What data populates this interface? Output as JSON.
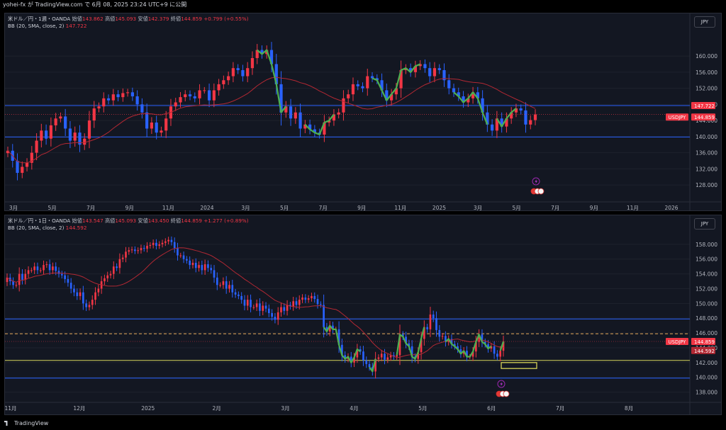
{
  "header": {
    "text": "yohei-fx が TradingView.com で 6月 08, 2025 23:24 UTC+9 に公開"
  },
  "footer": {
    "brand": "TradingView"
  },
  "colors": {
    "up": "#f23645",
    "down": "#2962ff",
    "bb": "#b22833",
    "hline": "#2962ff",
    "green": "#4caf50",
    "yellow": "#e5e25a",
    "bg": "#131722"
  },
  "icons": [
    "lightning-icon",
    "us-flag-icon"
  ],
  "chart_data": [
    {
      "type": "candlestick",
      "legend": {
        "symbol": "米ドル／円・1週・OANDA",
        "open_label": "始値",
        "open": "143.862",
        "high_label": "高値",
        "high": "145.093",
        "low_label": "安値",
        "low": "142.379",
        "close_label": "終値",
        "close": "144.859",
        "change": "+0.799 (+0.55%)",
        "bb": "BB (20, SMA, close, 2)",
        "bb_value": "147.722"
      },
      "currency": "JPY",
      "ylim": [
        124.5,
        166
      ],
      "yticks": [
        "160.000",
        "156.000",
        "152.000",
        "148.000",
        "144.000",
        "140.000",
        "136.000",
        "132.000",
        "128.000"
      ],
      "xticks": [
        "3月",
        "5月",
        "7月",
        "9月",
        "11月",
        "2024",
        "3月",
        "5月",
        "7月",
        "9月",
        "11月",
        "2025",
        "3月",
        "5月",
        "7月",
        "9月",
        "11月",
        "2026"
      ],
      "close_series": [
        136.5,
        134,
        131,
        132.5,
        133.5,
        136,
        139,
        141.5,
        139.5,
        142.8,
        144.5,
        145,
        142,
        139,
        141,
        138,
        139.5,
        144,
        147,
        147.5,
        149.5,
        149,
        150.5,
        149.8,
        150.8,
        151,
        150,
        148,
        146,
        142,
        143.5,
        141,
        141.5,
        144.5,
        147.5,
        148.5,
        149.8,
        150.5,
        150,
        149.5,
        151.5,
        151.5,
        149,
        151.5,
        153,
        154,
        155,
        157,
        156.5,
        155,
        157,
        159.5,
        161.5,
        160.5,
        161.5,
        158,
        153,
        146,
        147.5,
        144.5,
        146,
        142,
        143,
        141.8,
        141,
        140.5,
        143.5,
        144,
        145.5,
        146,
        149.5,
        150.5,
        153,
        152.5,
        152,
        155,
        154.5,
        154,
        151.5,
        149,
        150.5,
        152,
        156.5,
        157,
        156,
        157.5,
        158,
        157,
        155,
        157,
        156.5,
        154,
        152,
        151,
        150,
        148.5,
        149.5,
        151,
        149.5,
        146,
        143,
        141.5,
        144.5,
        142.5,
        144.5,
        146,
        147,
        146.5,
        143,
        144.1,
        145.5
      ],
      "horizontal_lines": [
        {
          "value": 147.722,
          "label": "147.722",
          "color": "#2962ff"
        },
        {
          "value": 139.9,
          "color": "#2962ff"
        }
      ],
      "price_labels": [
        {
          "text": "147.722",
          "value": 147.722,
          "color": "#f23645"
        },
        {
          "text": "USDJPY",
          "value": 144.859,
          "color": "#f23645"
        },
        {
          "text": "144.859",
          "value": 144.859,
          "color": "#f23645"
        }
      ]
    },
    {
      "type": "candlestick",
      "legend": {
        "symbol": "米ドル／円・1日・OANDA",
        "open_label": "始値",
        "open": "143.547",
        "high_label": "高値",
        "high": "145.093",
        "low_label": "安値",
        "low": "143.450",
        "close_label": "終値",
        "close": "144.859",
        "change": "+1.277 (+0.89%)",
        "bb": "BB (20, SMA, close, 2)",
        "bb_value": "144.592"
      },
      "currency": "JPY",
      "ylim": [
        137,
        160
      ],
      "yticks": [
        "158.000",
        "156.000",
        "154.000",
        "152.000",
        "150.000",
        "148.000",
        "146.000",
        "144.000",
        "142.000",
        "140.000",
        "138.000"
      ],
      "xticks": [
        "11月",
        "12月",
        "2025",
        "2月",
        "3月",
        "4月",
        "5月",
        "6月",
        "7月",
        "8月"
      ],
      "close_series": [
        153.5,
        153,
        152.5,
        152.5,
        154,
        153.2,
        154,
        154.5,
        154.5,
        155,
        154.5,
        154.5,
        155.2,
        155.3,
        154.5,
        155,
        154.4,
        154,
        153.8,
        153.3,
        152.8,
        152,
        151.5,
        151,
        151.5,
        150,
        149.5,
        149.8,
        150.5,
        151.5,
        152,
        153,
        153.4,
        153.8,
        154,
        155,
        154.8,
        156,
        156.2,
        157,
        157.2,
        157.3,
        157.1,
        157.2,
        157.5,
        157.4,
        157.8,
        157.9,
        158.2,
        157.8,
        158,
        158.2,
        158.4,
        158.6,
        158.3,
        157.5,
        156.5,
        156.5,
        156,
        155.8,
        155.2,
        155.5,
        154.8,
        155.2,
        154.5,
        155.3,
        154.8,
        154.5,
        153.5,
        152.5,
        152.5,
        153,
        152,
        152.5,
        151.5,
        151.2,
        151,
        150.5,
        149.7,
        150.5,
        149.5,
        149.5,
        150,
        149,
        149.7,
        149.3,
        148.7,
        148.2,
        147.8,
        148.8,
        149.5,
        149,
        149.8,
        149.6,
        150.3,
        149.8,
        150.5,
        150.8,
        150.5,
        150.7,
        151,
        150.6,
        149.9,
        149.8,
        146.8,
        146.2,
        147,
        146.5,
        146.5,
        144.4,
        143,
        142.5,
        142.8,
        142,
        142.7,
        143.8,
        143.5,
        142.3,
        141.8,
        141.4,
        140.8,
        142.5,
        142.7,
        143.2,
        142.4,
        142.7,
        143,
        142.8,
        143,
        145.8,
        145.5,
        144.6,
        144.2,
        142.8,
        142.5,
        143.4,
        145.2,
        146.8,
        146.5,
        148.5,
        148,
        146.4,
        145.5,
        145.6,
        144.8,
        145.2,
        144.5,
        144.2,
        143.8,
        143.2,
        143.6,
        142.8,
        142.8,
        143.5,
        144.8,
        145.8,
        144.8,
        144.5,
        143.9,
        144.2,
        143.2,
        142.8,
        143.6,
        144.859
      ],
      "horizontal_lines": [
        {
          "value": 147.9,
          "color": "#2962ff"
        },
        {
          "value": 145.9,
          "color": "#e5a85a",
          "style": "dashed"
        },
        {
          "value": 142.3,
          "color": "#d4d45a"
        },
        {
          "value": 139.9,
          "color": "#2962ff"
        }
      ],
      "price_labels": [
        {
          "text": "USDJPY",
          "value": 144.859,
          "color": "#f23645"
        },
        {
          "text": "144.859",
          "value": 144.859,
          "color": "#f23645"
        },
        {
          "text": "144.592",
          "value": 144.592,
          "color": "#b22833"
        }
      ],
      "target_box": {
        "y_range": [
          141.2,
          142.0
        ],
        "color": "#e5e25a"
      }
    }
  ]
}
